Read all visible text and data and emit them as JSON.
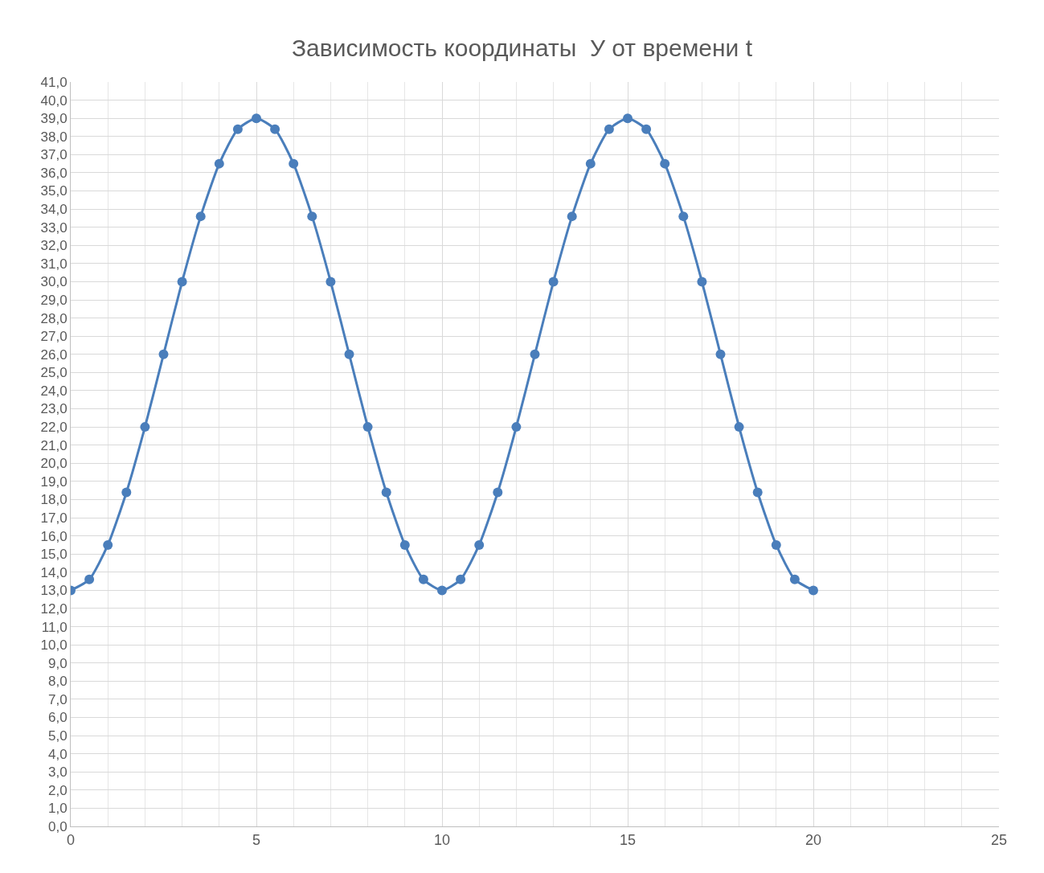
{
  "chart_data": {
    "type": "line",
    "title": "Зависимость координаты  У от времени t",
    "x": [
      0,
      0.5,
      1,
      1.5,
      2,
      2.5,
      3,
      3.5,
      4,
      4.5,
      5,
      5.5,
      6,
      6.5,
      7,
      7.5,
      8,
      8.5,
      9,
      9.5,
      10,
      10.5,
      11,
      11.5,
      12,
      12.5,
      13,
      13.5,
      14,
      14.5,
      15,
      15.5,
      16,
      16.5,
      17,
      17.5,
      18,
      18.5,
      19,
      19.5,
      20
    ],
    "series": [
      {
        "color": "#4a7ebb",
        "values": [
          13.0,
          13.6,
          15.5,
          18.4,
          22.0,
          26.0,
          30.0,
          33.6,
          36.5,
          38.4,
          39.0,
          38.4,
          36.5,
          33.6,
          30.0,
          26.0,
          22.0,
          18.4,
          15.5,
          13.6,
          13.0,
          13.6,
          15.5,
          18.4,
          22.0,
          26.0,
          30.0,
          33.6,
          36.5,
          38.4,
          39.0,
          38.4,
          36.5,
          33.6,
          30.0,
          26.0,
          22.0,
          18.4,
          15.5,
          13.6,
          13.0
        ]
      }
    ],
    "xlim": [
      0,
      25
    ],
    "xticks": [
      0,
      5,
      10,
      15,
      20,
      25
    ],
    "ylim": [
      0,
      41
    ],
    "yticks": [
      {
        "value": 0,
        "label": "0,0"
      },
      {
        "value": 1,
        "label": "1,0"
      },
      {
        "value": 2,
        "label": "2,0"
      },
      {
        "value": 3,
        "label": "3,0"
      },
      {
        "value": 4,
        "label": "4,0"
      },
      {
        "value": 5,
        "label": "5,0"
      },
      {
        "value": 6,
        "label": "6,0"
      },
      {
        "value": 7,
        "label": "7,0"
      },
      {
        "value": 8,
        "label": "8,0"
      },
      {
        "value": 9,
        "label": "9,0"
      },
      {
        "value": 10,
        "label": "10,0"
      },
      {
        "value": 11,
        "label": "11,0"
      },
      {
        "value": 12,
        "label": "12,0"
      },
      {
        "value": 13,
        "label": "13,0"
      },
      {
        "value": 14,
        "label": "14,0"
      },
      {
        "value": 15,
        "label": "15,0"
      },
      {
        "value": 16,
        "label": "16,0"
      },
      {
        "value": 17,
        "label": "17,0"
      },
      {
        "value": 18,
        "label": "18,0"
      },
      {
        "value": 19,
        "label": "19,0"
      },
      {
        "value": 20,
        "label": "20,0"
      },
      {
        "value": 21,
        "label": "21,0"
      },
      {
        "value": 22,
        "label": "22,0"
      },
      {
        "value": 23,
        "label": "23,0"
      },
      {
        "value": 24,
        "label": "24,0"
      },
      {
        "value": 25,
        "label": "25,0"
      },
      {
        "value": 26,
        "label": "26,0"
      },
      {
        "value": 27,
        "label": "27,0"
      },
      {
        "value": 28,
        "label": "28,0"
      },
      {
        "value": 29,
        "label": "29,0"
      },
      {
        "value": 30,
        "label": "30,0"
      },
      {
        "value": 31,
        "label": "31,0"
      },
      {
        "value": 32,
        "label": "32,0"
      },
      {
        "value": 33,
        "label": "33,0"
      },
      {
        "value": 34,
        "label": "34,0"
      },
      {
        "value": 35,
        "label": "35,0"
      },
      {
        "value": 36,
        "label": "36,0"
      },
      {
        "value": 37,
        "label": "37,0"
      },
      {
        "value": 38,
        "label": "38,0"
      },
      {
        "value": 39,
        "label": "39,0"
      },
      {
        "value": 40,
        "label": "40,0"
      },
      {
        "value": 41,
        "label": "41,0"
      }
    ],
    "grid": true,
    "marker": "circle",
    "line_style": "solid"
  }
}
